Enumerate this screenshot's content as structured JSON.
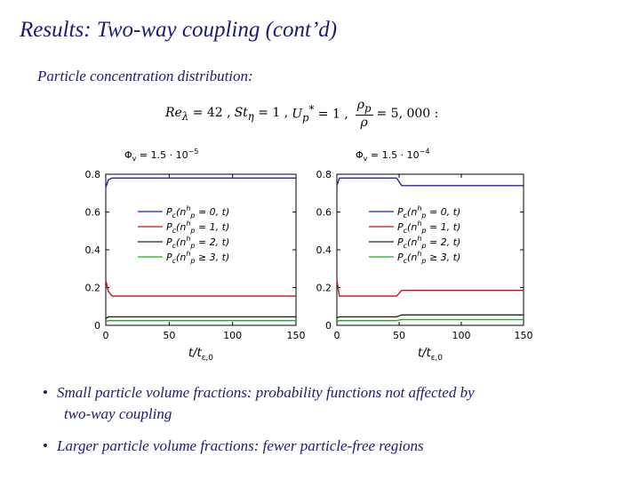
{
  "slide": {
    "title": "Results: Two-way coupling (cont’d)",
    "subtitle": "Particle concentration distribution:",
    "equation": {
      "re": "Re",
      "re_sub": "λ",
      "re_val": " = 42 ,",
      "st": "St",
      "st_sub": "η",
      "st_val": " = 1 ,",
      "up": "U",
      "up_sub": "p",
      "up_sup": "*",
      "up_val": " = 1 ,",
      "frac_num": "ρ",
      "frac_num_sub": "p",
      "frac_den": "ρ",
      "frac_val": " = 5, 000 :"
    },
    "bullets": [
      {
        "dot": "•",
        "line1": "Small particle volume fractions: probability functions not affected by",
        "line2": "two-way coupling"
      },
      {
        "dot": "•",
        "line1": "Larger particle volume fractions: fewer particle-free regions",
        "line2": ""
      }
    ]
  },
  "colors": {
    "text": "#1a1a7a",
    "blue": "#2222bb",
    "red": "#cc1111",
    "black": "#222222",
    "green": "#22aa22"
  },
  "chart_data": [
    {
      "type": "line",
      "title": "Φ_v = 1.5 · 10^−5",
      "title_parts": {
        "phi": "Φ",
        "sub": "v",
        "base": " = 1.5 · 10",
        "exp": "−5"
      },
      "xlabel": "t/t_{ε,0}",
      "xlabel_parts": {
        "t": "t/t",
        "sub": "ε,0"
      },
      "ylabel": "",
      "xlim": [
        0,
        150
      ],
      "ylim": [
        0,
        0.8
      ],
      "xticks": [
        "0",
        "50",
        "100",
        "150"
      ],
      "yticks": [
        "0",
        "0.2",
        "0.4",
        "0.6",
        "0.8"
      ],
      "legend_position": "center-left",
      "series": [
        {
          "name": "P_c(n_p^h = 0, t)",
          "legend": {
            "P": "P",
            "sub": "c",
            "arg": "(n",
            "arg_sub": "p",
            "arg_sup": "h",
            "rest": " = 0, t)"
          },
          "color": "blue",
          "x": [
            0,
            2,
            5,
            10,
            30,
            50,
            100,
            150
          ],
          "values": [
            0.73,
            0.77,
            0.78,
            0.78,
            0.78,
            0.78,
            0.78,
            0.78
          ]
        },
        {
          "name": "P_c(n_p^h = 1, t)",
          "legend": {
            "P": "P",
            "sub": "c",
            "arg": "(n",
            "arg_sub": "p",
            "arg_sup": "h",
            "rest": " = 1, t)"
          },
          "color": "red",
          "x": [
            0,
            2,
            5,
            10,
            30,
            50,
            100,
            150
          ],
          "values": [
            0.24,
            0.18,
            0.155,
            0.155,
            0.155,
            0.155,
            0.155,
            0.155
          ]
        },
        {
          "name": "P_c(n_p^h = 2, t)",
          "legend": {
            "P": "P",
            "sub": "c",
            "arg": "(n",
            "arg_sub": "p",
            "arg_sup": "h",
            "rest": " = 2, t)"
          },
          "color": "black",
          "x": [
            0,
            2,
            5,
            10,
            30,
            50,
            100,
            150
          ],
          "values": [
            0.035,
            0.045,
            0.045,
            0.045,
            0.045,
            0.045,
            0.045,
            0.045
          ]
        },
        {
          "name": "P_c(n_p^h ≥ 3, t)",
          "legend": {
            "P": "P",
            "sub": "c",
            "arg": "(n",
            "arg_sub": "p",
            "arg_sup": "h",
            "rest": " ≥ 3, t)"
          },
          "color": "green",
          "x": [
            0,
            2,
            5,
            10,
            30,
            50,
            100,
            150
          ],
          "values": [
            0.02,
            0.025,
            0.025,
            0.025,
            0.025,
            0.025,
            0.025,
            0.025
          ]
        }
      ]
    },
    {
      "type": "line",
      "title": "Φ_v = 1.5 · 10^−4",
      "title_parts": {
        "phi": "Φ",
        "sub": "v",
        "base": " = 1.5 · 10",
        "exp": "−4"
      },
      "xlabel": "t/t_{ε,0}",
      "xlabel_parts": {
        "t": "t/t",
        "sub": "ε,0"
      },
      "ylabel": "",
      "xlim": [
        0,
        150
      ],
      "ylim": [
        0,
        0.8
      ],
      "xticks": [
        "0",
        "50",
        "100",
        "150"
      ],
      "yticks": [
        "0",
        "0.2",
        "0.4",
        "0.6",
        "0.8"
      ],
      "legend_position": "center-left",
      "series": [
        {
          "name": "P_c(n_p^h = 0, t)",
          "legend": {
            "P": "P",
            "sub": "c",
            "arg": "(n",
            "arg_sub": "p",
            "arg_sup": "h",
            "rest": " = 0, t)"
          },
          "color": "blue",
          "x": [
            0,
            2,
            5,
            48,
            50,
            52,
            100,
            150
          ],
          "values": [
            0.74,
            0.78,
            0.78,
            0.78,
            0.76,
            0.74,
            0.74,
            0.74
          ]
        },
        {
          "name": "P_c(n_p^h = 1, t)",
          "legend": {
            "P": "P",
            "sub": "c",
            "arg": "(n",
            "arg_sub": "p",
            "arg_sup": "h",
            "rest": " = 1, t)"
          },
          "color": "red",
          "x": [
            0,
            2,
            5,
            48,
            50,
            52,
            100,
            150
          ],
          "values": [
            0.24,
            0.155,
            0.155,
            0.155,
            0.17,
            0.185,
            0.185,
            0.185
          ]
        },
        {
          "name": "P_c(n_p^h = 2, t)",
          "legend": {
            "P": "P",
            "sub": "c",
            "arg": "(n",
            "arg_sub": "p",
            "arg_sup": "h",
            "rest": " = 2, t)"
          },
          "color": "black",
          "x": [
            0,
            2,
            5,
            48,
            50,
            52,
            100,
            150
          ],
          "values": [
            0.04,
            0.045,
            0.045,
            0.045,
            0.05,
            0.055,
            0.055,
            0.055
          ]
        },
        {
          "name": "P_c(n_p^h ≥ 3, t)",
          "legend": {
            "P": "P",
            "sub": "c",
            "arg": "(n",
            "arg_sub": "p",
            "arg_sup": "h",
            "rest": " ≥ 3, t)"
          },
          "color": "green",
          "x": [
            0,
            2,
            5,
            48,
            50,
            52,
            100,
            150
          ],
          "values": [
            0.02,
            0.025,
            0.025,
            0.025,
            0.028,
            0.03,
            0.03,
            0.03
          ]
        }
      ]
    }
  ]
}
